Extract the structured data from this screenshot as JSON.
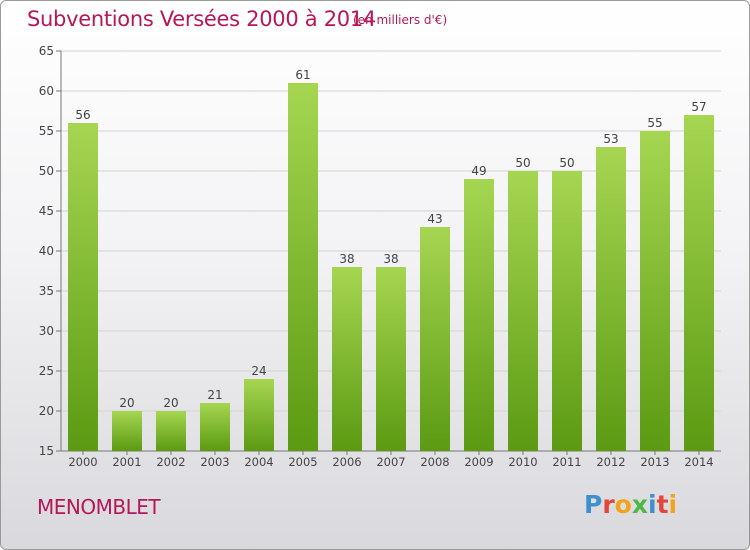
{
  "header": {
    "title": "Subventions Versées 2000 à 2014",
    "subtitle": "(en milliers d'€)"
  },
  "footer": {
    "commune": "MENOMBLET",
    "logo": "Proxiti"
  },
  "colors": {
    "accent": "#b5175a",
    "bar_top": "#a6d651",
    "bar_bottom": "#5b9a12"
  },
  "chart_data": {
    "type": "bar",
    "title": "Subventions Versées 2000 à 2014",
    "subtitle": "(en milliers d'€)",
    "xlabel": "",
    "ylabel": "",
    "categories": [
      "2000",
      "2001",
      "2002",
      "2003",
      "2004",
      "2005",
      "2006",
      "2007",
      "2008",
      "2009",
      "2010",
      "2011",
      "2012",
      "2013",
      "2014"
    ],
    "values": [
      56,
      20,
      20,
      21,
      24,
      61,
      38,
      38,
      43,
      49,
      50,
      50,
      53,
      55,
      57
    ],
    "ylim": [
      15,
      65
    ],
    "yticks": [
      15,
      20,
      25,
      30,
      35,
      40,
      45,
      50,
      55,
      60,
      65
    ],
    "grid": true,
    "legend": "none"
  }
}
